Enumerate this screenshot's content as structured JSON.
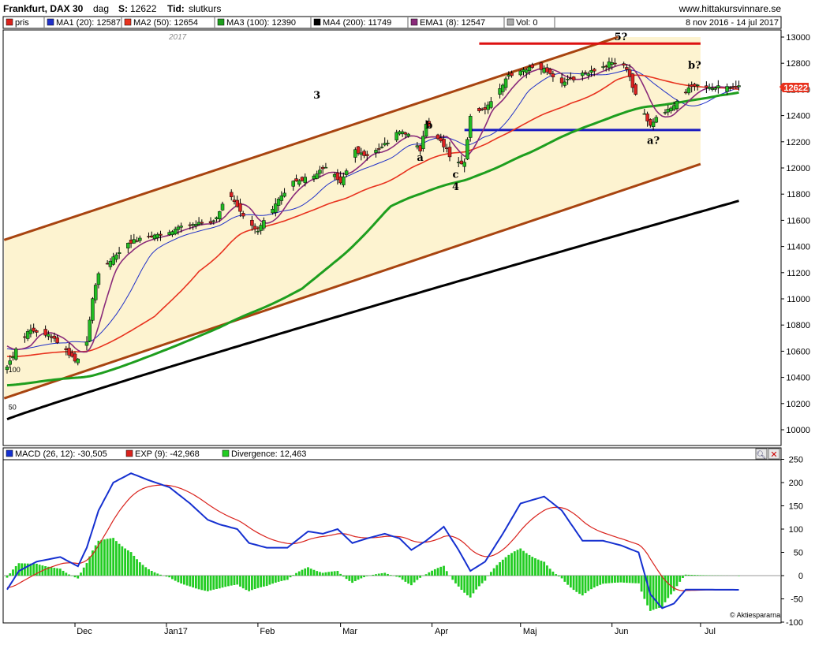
{
  "header": {
    "name": "Frankfurt, DAX 30",
    "period": "dag",
    "s_label": "S:",
    "s_value": "12622",
    "tid_label": "Tid:",
    "tid_value": "slutkurs",
    "site": "www.hittakursvinnare.se",
    "range": "8 nov 2016 - 14 jul 2017"
  },
  "year_label": "2017",
  "brand": "© Aktiespararna",
  "price_legend": [
    {
      "label": "pris",
      "color": "#d9221c"
    },
    {
      "label": "MA1 (20): 12587",
      "color": "#2030c8"
    },
    {
      "label": "MA2 (50): 12654",
      "color": "#e8321e"
    },
    {
      "label": "MA3 (100): 12390",
      "color": "#1e9e1e"
    },
    {
      "label": "MA4 (200): 11749",
      "color": "#000000"
    },
    {
      "label": "EMA1 (8): 12547",
      "color": "#8a2a7a"
    },
    {
      "label": "Vol: 0",
      "color": "#aaaaaa"
    }
  ],
  "macd_legend": [
    {
      "label": "MACD (26, 12): -30,505",
      "color": "#1530d0"
    },
    {
      "label": "EXP (9): -42,968",
      "color": "#d9221c"
    },
    {
      "label": "Divergence: 12,463",
      "color": "#22cc22"
    }
  ],
  "last_price_label": "12622",
  "price_axis_labels": [
    "10000",
    "10200",
    "10400",
    "10600",
    "10800",
    "11000",
    "11200",
    "11400",
    "11600",
    "11800",
    "12000",
    "12200",
    "12400",
    "12600",
    "12800",
    "13000"
  ],
  "macd_axis_labels": [
    "-100",
    "-50",
    "0",
    "50",
    "100",
    "150",
    "200",
    "250"
  ],
  "month_labels": [
    "Dec",
    "Jan17",
    "Feb",
    "Mar",
    "Apr",
    "Maj",
    "Jun",
    "Jul"
  ],
  "annotations": [
    {
      "text": "3",
      "d": 105,
      "v": 12530
    },
    {
      "text": "a",
      "d": 140,
      "v": 12055
    },
    {
      "text": "b",
      "d": 143,
      "v": 12300
    },
    {
      "text": "c",
      "d": 152,
      "v": 11925
    },
    {
      "text": "4",
      "d": 152,
      "v": 11830
    },
    {
      "text": "5?",
      "d": 208,
      "v": 12975
    },
    {
      "text": "b?",
      "d": 233,
      "v": 12760
    },
    {
      "text": "a?",
      "d": 219,
      "v": 12185
    }
  ],
  "left_labels": [
    {
      "text": "100",
      "d": 1,
      "v": 10440
    },
    {
      "text": "50",
      "d": 1,
      "v": 10155
    }
  ],
  "chart_data": [
    {
      "type": "candlestick",
      "title": "Frankfurt, DAX 30",
      "x_start": "2016-11-08",
      "x_end": "2017-07-14",
      "ylim": [
        10000,
        13000
      ],
      "grid": false,
      "legend_position": "top",
      "candles": [],
      "moving_averages": [
        {
          "name": "MA1 (20)",
          "last": 12587,
          "color": "#2030c8"
        },
        {
          "name": "MA2 (50)",
          "last": 12654,
          "color": "#e8321e"
        },
        {
          "name": "MA3 (100)",
          "last": 12390,
          "color": "#1e9e1e"
        },
        {
          "name": "MA4 (200)",
          "last": 11749,
          "color": "#000000"
        },
        {
          "name": "EMA1 (8)",
          "last": 12547,
          "color": "#8a2a7a"
        }
      ],
      "trend_lines": [
        {
          "name": "channel-upper",
          "color": "#a84410",
          "points": [
            [
              -1,
              11450
            ],
            [
              207,
              13000
            ]
          ]
        },
        {
          "name": "channel-lower",
          "color": "#a84410",
          "points": [
            [
              -1,
              10240
            ],
            [
              235,
              12030
            ]
          ]
        },
        {
          "name": "resistance",
          "color": "#dd1111",
          "points": [
            [
              160,
              12950
            ],
            [
              235,
              12950
            ]
          ]
        },
        {
          "name": "support",
          "color": "#1a1ac0",
          "points": [
            [
              155,
              12290
            ],
            [
              235,
              12290
            ]
          ]
        }
      ]
    },
    {
      "type": "line",
      "title": "MACD (26, 12)",
      "ylim": [
        -100,
        250
      ],
      "series": [
        {
          "name": "MACD (26, 12)",
          "last": -30.505,
          "color": "#1530d0",
          "values": []
        },
        {
          "name": "EXP (9)",
          "last": -42.968,
          "color": "#d9221c",
          "values": []
        },
        {
          "name": "Divergence",
          "last": 12.463,
          "color": "#22cc22",
          "values": []
        }
      ]
    }
  ]
}
